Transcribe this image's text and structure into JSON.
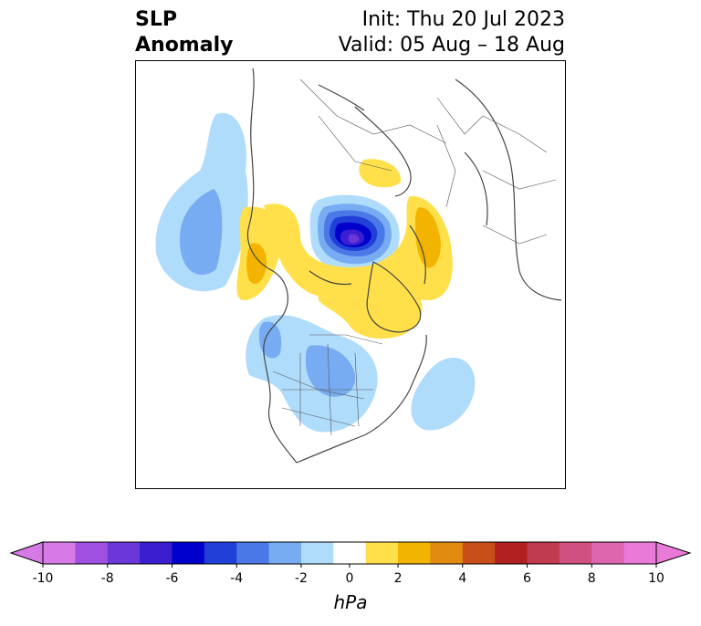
{
  "title": {
    "line1": "SLP",
    "line2": "Anomaly",
    "init": "Init: Thu 20 Jul 2023",
    "valid": "Valid: 05 Aug – 18 Aug"
  },
  "colorbar": {
    "unit": "hPa",
    "ticks": [
      "-10",
      "-8",
      "-6",
      "-4",
      "-2",
      "0",
      "2",
      "4",
      "6",
      "8",
      "10"
    ],
    "levels": [
      -10,
      -9,
      -8,
      -7,
      -6,
      -5,
      -4,
      -3,
      -2,
      -1,
      1,
      2,
      3,
      4,
      5,
      6,
      7,
      8,
      9,
      10
    ],
    "colors": [
      "#d77ae8",
      "#a050e0",
      "#6a38d8",
      "#3a1ed0",
      "#0000cc",
      "#2040d8",
      "#4a78e6",
      "#78acf2",
      "#b0dcfc",
      "#ffffff",
      "#ffe04a",
      "#f2b400",
      "#e08a10",
      "#c85018",
      "#b02020",
      "#c03a50",
      "#d05080",
      "#de66ae",
      "#ea7ad8"
    ],
    "extend": "both"
  },
  "colors": {
    "coast": "#444444",
    "border": "#555555"
  }
}
